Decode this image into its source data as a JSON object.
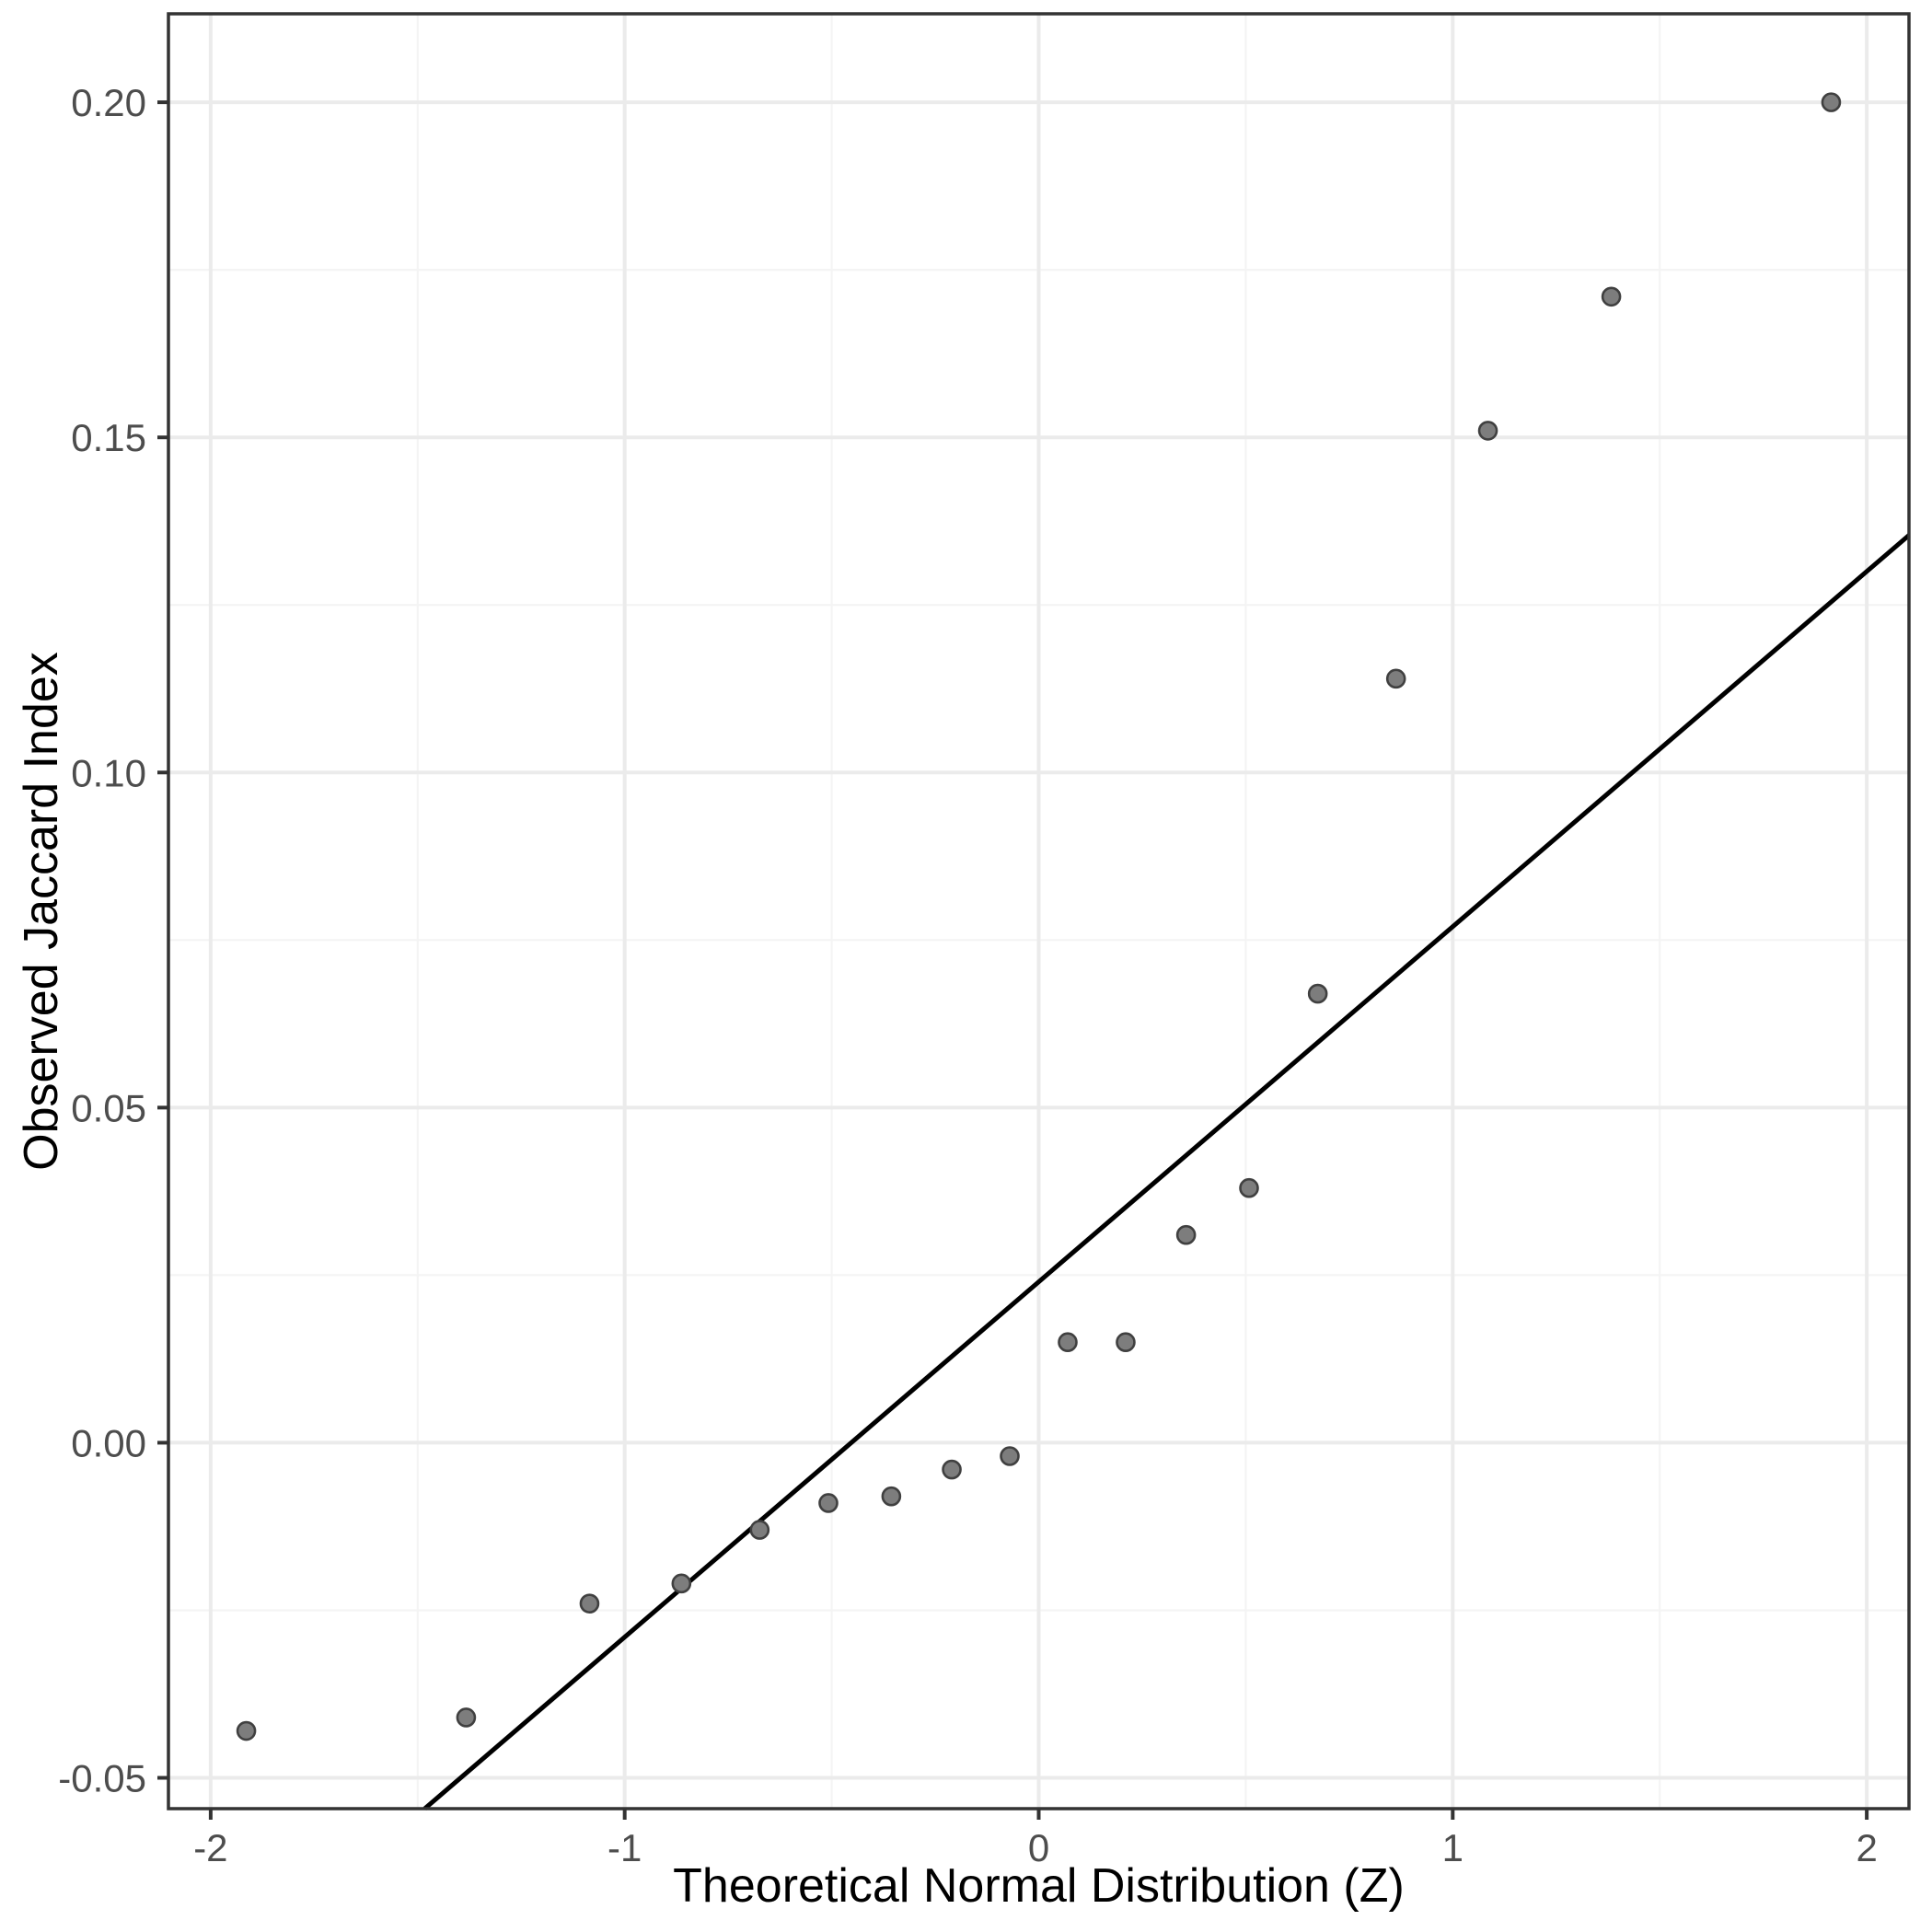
{
  "chart_data": {
    "type": "scatter",
    "title": "",
    "xlabel": "Theoretical Normal Distribution (Z)",
    "ylabel": "Observed Jaccard Index",
    "x_tick_values": [
      -2,
      -1,
      0,
      1,
      2
    ],
    "x_tick_labels": [
      "-2",
      "-1",
      "0",
      "1",
      "2"
    ],
    "y_tick_values": [
      0.2,
      0.15,
      0.1,
      0.05,
      0.0,
      -0.05
    ],
    "y_tick_labels": [
      "0.20",
      "0.15",
      "0.10",
      "0.05",
      "0.00",
      "-0.05"
    ],
    "x_minor_ticks": [
      -1.5,
      -0.5,
      0.5,
      1.5
    ],
    "y_minor_ticks": [
      -0.025,
      0.025,
      0.075,
      0.125,
      0.175
    ],
    "xlim": [
      -2.102,
      2.102
    ],
    "ylim": [
      -0.0546,
      0.2132
    ],
    "grid": true,
    "legend_position": "none",
    "n_points": 18,
    "series": [
      {
        "name": "observed-vs-theoretical-quantiles",
        "x": [
          -1.914,
          -1.383,
          -1.085,
          -0.863,
          -0.674,
          -0.508,
          -0.356,
          -0.21,
          -0.07,
          0.07,
          0.21,
          0.356,
          0.508,
          0.674,
          0.863,
          1.085,
          1.383,
          1.914
        ],
        "y": [
          -0.043,
          -0.041,
          -0.024,
          -0.021,
          -0.013,
          -0.009,
          -0.008,
          -0.004,
          -0.002,
          0.015,
          0.015,
          0.031,
          0.038,
          0.067,
          0.114,
          0.151,
          0.171,
          0.2
        ]
      }
    ],
    "reference_line": {
      "slope": 0.053,
      "intercept": 0.024
    },
    "colors": {
      "point_fill": "#7d7d7d",
      "point_stroke": "#404040",
      "line": "#000000",
      "grid_major": "#ebebeb",
      "grid_minor": "#f4f4f4",
      "panel_border": "#333333",
      "tick_mark": "#333333",
      "tick_label": "#4d4d4d",
      "axis_title": "#000000",
      "background": "#ffffff"
    }
  }
}
